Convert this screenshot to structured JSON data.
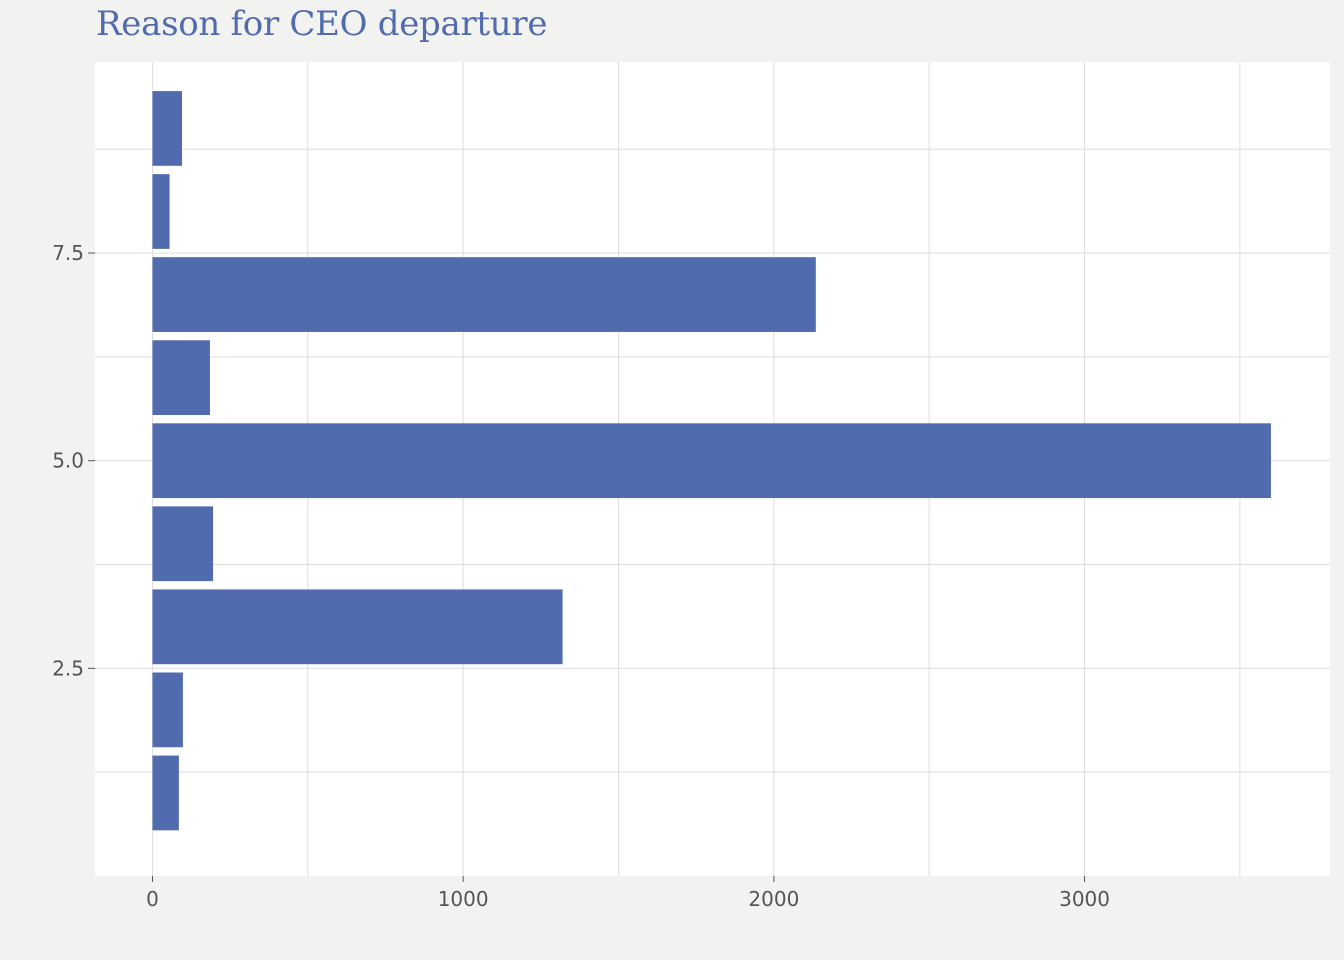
{
  "chart_data": {
    "type": "bar",
    "orientation": "horizontal",
    "title": "Reason for CEO departure",
    "xlabel": "",
    "ylabel": "",
    "y": [
      1,
      2,
      3,
      4,
      5,
      6,
      7,
      8,
      9
    ],
    "values": [
      85,
      98,
      1320,
      195,
      3600,
      185,
      2135,
      55,
      95
    ],
    "xlim": [
      -185,
      3790
    ],
    "ylim": [
      0.0,
      9.8
    ],
    "x_ticks": [
      0,
      1000,
      2000,
      3000
    ],
    "x_tick_labels": [
      "0",
      "1000",
      "2000",
      "3000"
    ],
    "y_ticks": [
      2.5,
      5.0,
      7.5
    ],
    "y_tick_labels": [
      "2.5",
      "5.0",
      "7.5"
    ],
    "grid": true,
    "colors": {
      "bar": "#516cae",
      "title": "#516cae",
      "grid": "#dddddd",
      "plot_bg": "#ffffff",
      "page_bg": "#f2f2f0",
      "tick_text": "#555555"
    }
  }
}
